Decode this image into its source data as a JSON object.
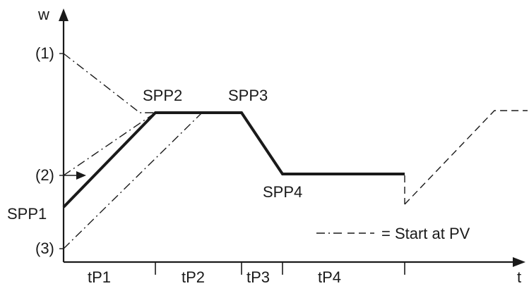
{
  "axes": {
    "y_label": "w",
    "x_label": "t"
  },
  "points": {
    "spp1": "SPP1",
    "spp2": "SPP2",
    "spp3": "SPP3",
    "spp4": "SPP4"
  },
  "start_markers": {
    "m1": "(1)",
    "m2": "(2)",
    "m3": "(3)"
  },
  "segments": {
    "tp1": "tP1",
    "tp2": "tP2",
    "tp3": "tP3",
    "tp4": "tP4"
  },
  "legend": {
    "text": "= Start at PV"
  }
}
